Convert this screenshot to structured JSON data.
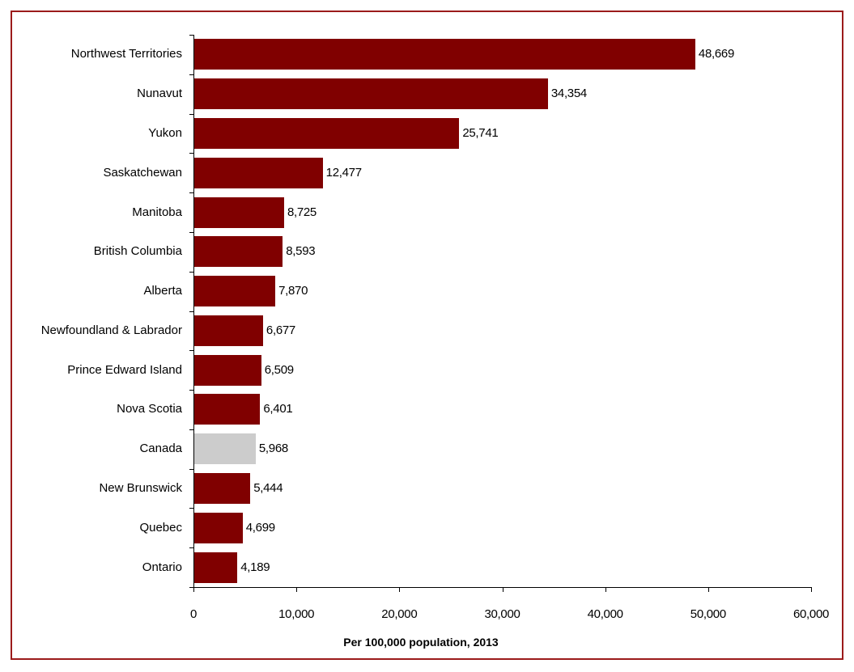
{
  "chart_data": {
    "type": "bar",
    "orientation": "horizontal",
    "title": "",
    "xlabel": "Per 100,000 population, 2013",
    "ylabel": "",
    "xlim": [
      0,
      60000
    ],
    "xticks": [
      "0",
      "10,000",
      "20,000",
      "30,000",
      "40,000",
      "50,000",
      "60,000"
    ],
    "xtick_values": [
      0,
      10000,
      20000,
      30000,
      40000,
      50000,
      60000
    ],
    "grid": false,
    "legend": null,
    "categories": [
      "Northwest Territories",
      "Nunavut",
      "Yukon",
      "Saskatchewan",
      "Manitoba",
      "British Columbia",
      "Alberta",
      "Newfoundland & Labrador",
      "Prince Edward Island",
      "Nova Scotia",
      "Canada",
      "New Brunswick",
      "Quebec",
      "Ontario"
    ],
    "values": [
      48669,
      34354,
      25741,
      12477,
      8725,
      8593,
      7870,
      6677,
      6509,
      6401,
      5968,
      5444,
      4699,
      4189
    ],
    "value_labels": [
      "48,669",
      "34,354",
      "25,741",
      "12,477",
      "8,725",
      "8,593",
      "7,870",
      "6,677",
      "6,509",
      "6,401",
      "5,968",
      "5,444",
      "4,699",
      "4,189"
    ],
    "highlight_category": "Canada",
    "colors": {
      "bar": "#800000",
      "highlight": "#cccccc",
      "frame": "#9b1b1b"
    }
  }
}
